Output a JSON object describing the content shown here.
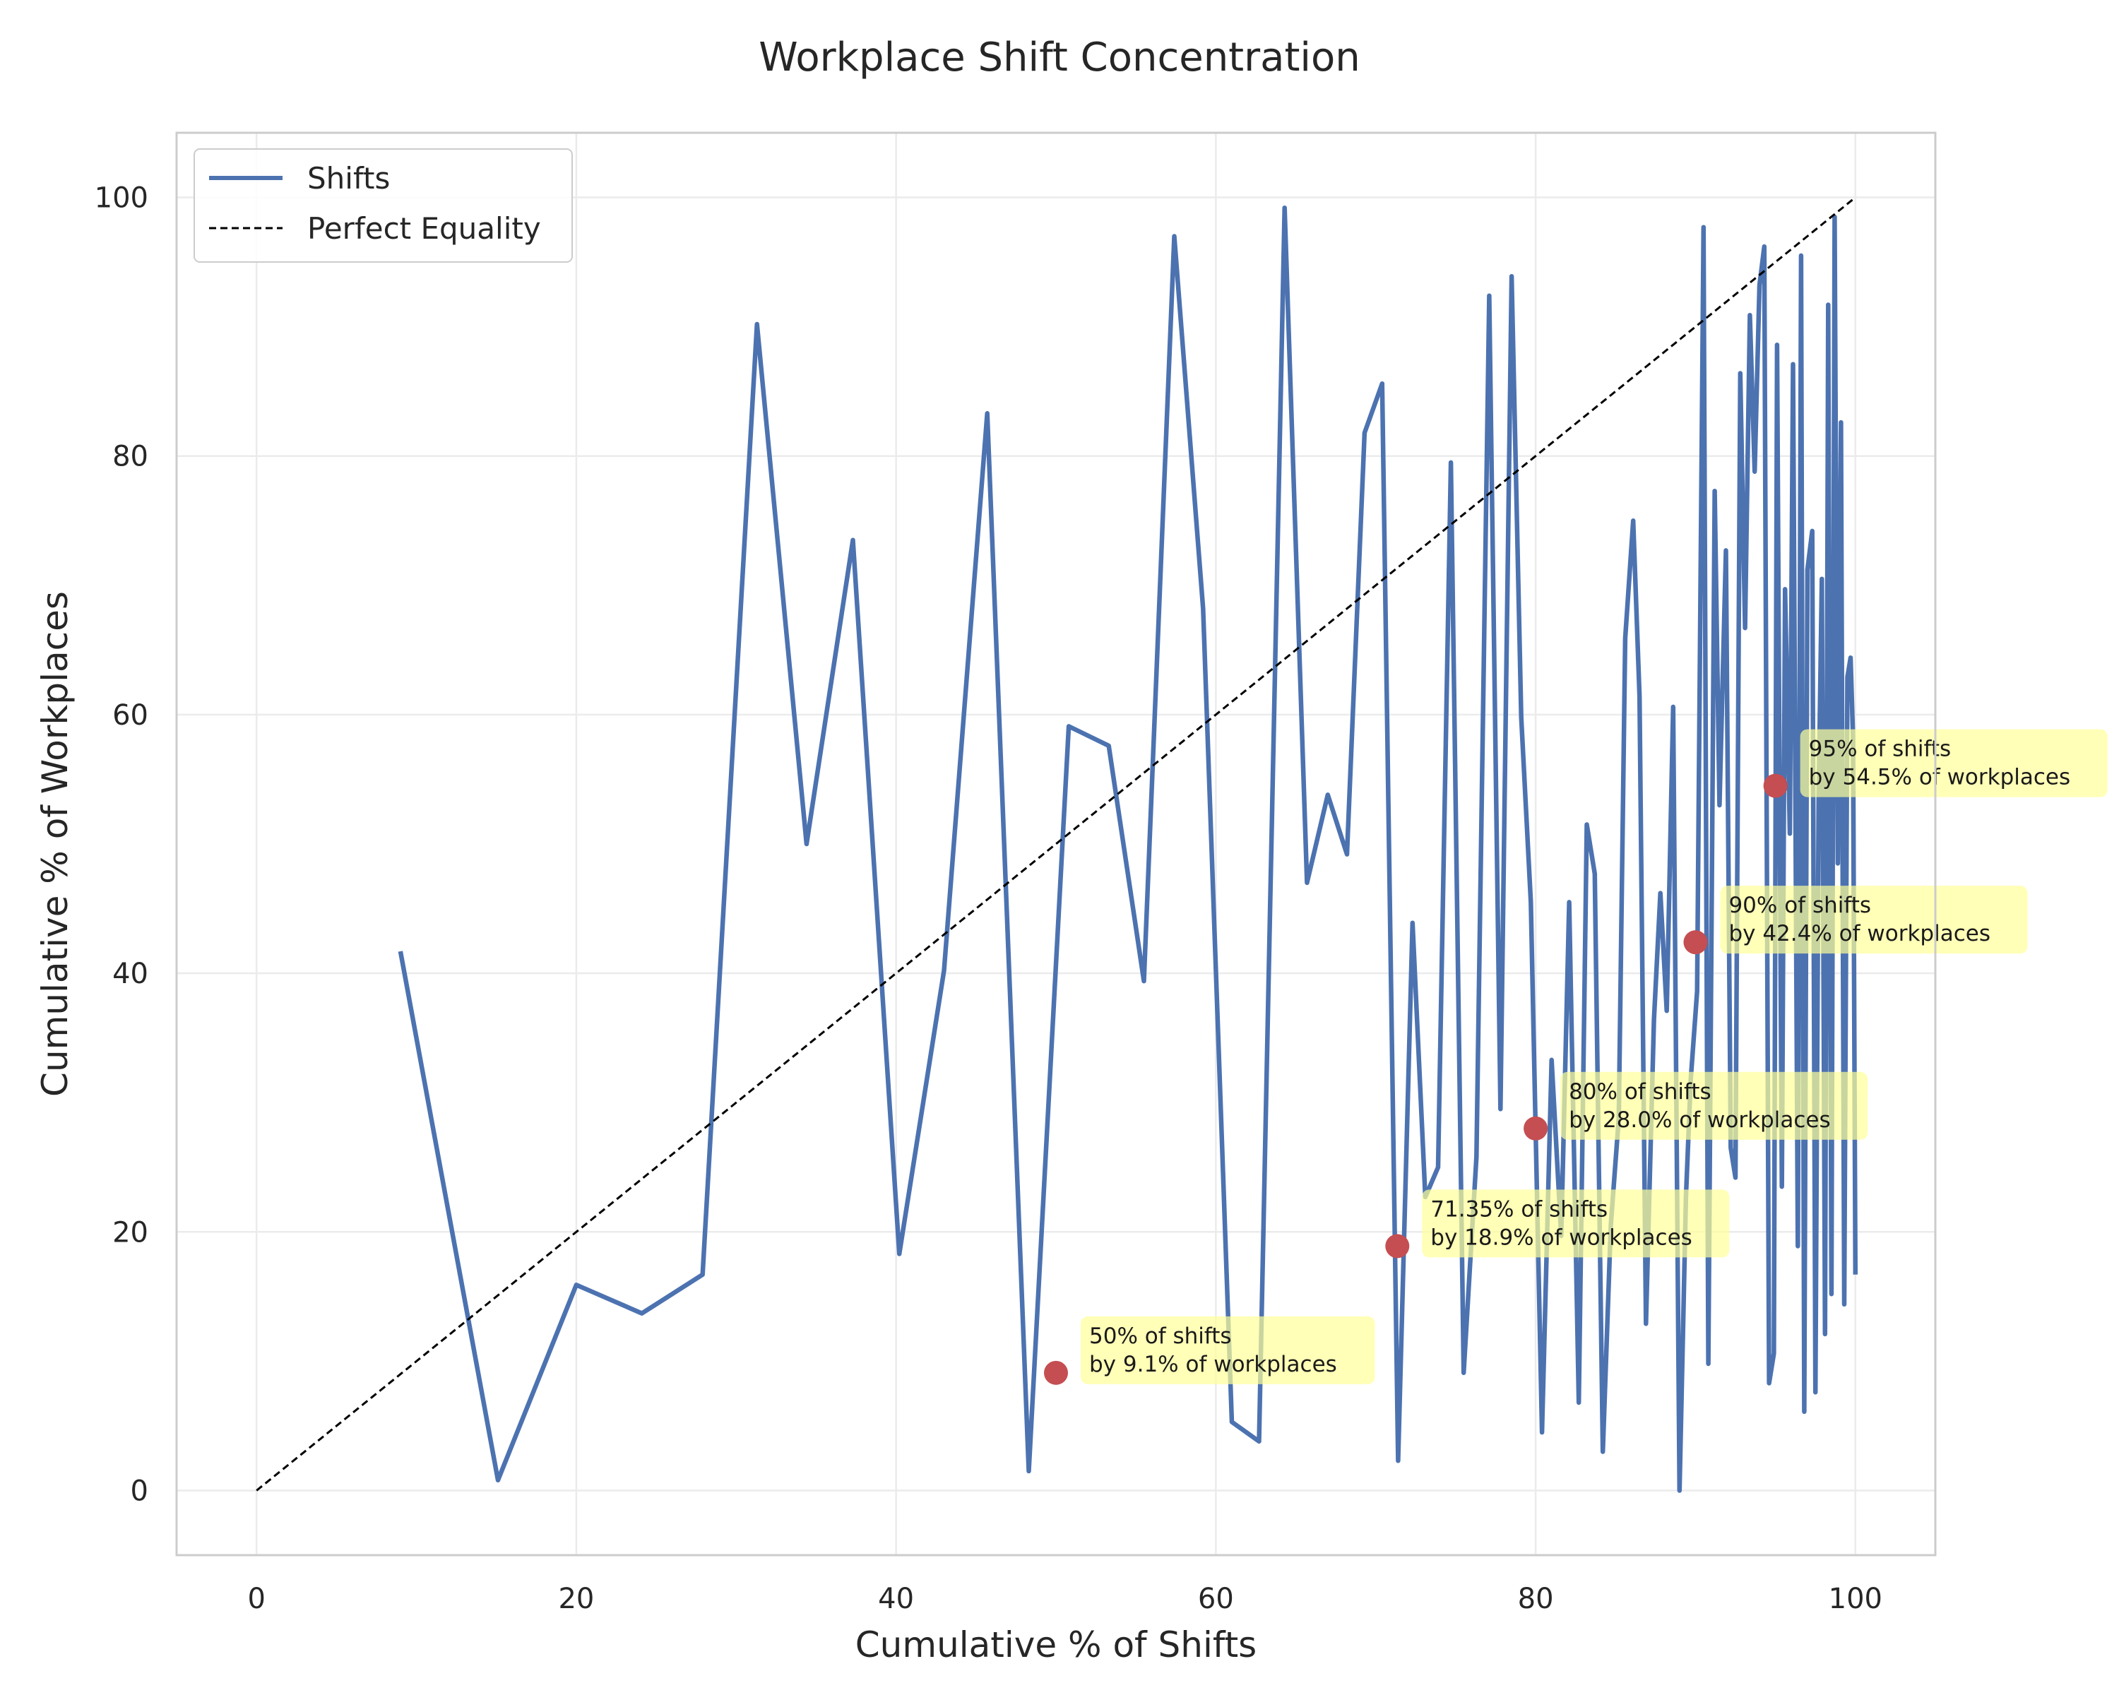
{
  "chart_data": {
    "type": "line",
    "title": "Workplace Shift Concentration",
    "xlabel": "Cumulative % of Shifts",
    "ylabel": "Cumulative % of Workplaces",
    "xlim": [
      -5,
      105
    ],
    "ylim": [
      -5,
      105
    ],
    "xticks": [
      "0",
      "20",
      "40",
      "60",
      "80",
      "100"
    ],
    "yticks": [
      "0",
      "20",
      "40",
      "60",
      "80",
      "100"
    ],
    "grid": true,
    "legend_placement": "top-left",
    "colors": {
      "shifts": "#4c72b0",
      "equality": "#000000",
      "markers": "#c44e52",
      "annot_box": "#ffff99",
      "grid": "#ebebeb",
      "frame": "#cccccc"
    },
    "series": [
      {
        "name": "Shifts",
        "style": "solid",
        "x": [
          9.0,
          15.1,
          20.0,
          24.1,
          27.9,
          31.3,
          34.4,
          37.3,
          40.2,
          43.0,
          45.7,
          48.3,
          50.8,
          53.3,
          55.5,
          57.4,
          59.2,
          61.0,
          62.7,
          64.3,
          65.7,
          67.0,
          68.2,
          69.3,
          70.4,
          71.4,
          72.3,
          73.1,
          73.9,
          74.7,
          75.5,
          76.3,
          77.1,
          77.8,
          78.5,
          79.1,
          79.7,
          80.4,
          81.0,
          81.6,
          82.1,
          82.7,
          83.2,
          83.7,
          84.2,
          84.7,
          85.2,
          85.6,
          86.1,
          86.5,
          86.9,
          87.4,
          87.8,
          88.2,
          88.6,
          89.0,
          89.4,
          89.7,
          90.1,
          90.5,
          90.8,
          91.2,
          91.5,
          91.9,
          92.2,
          92.5,
          92.8,
          93.1,
          93.4,
          93.7,
          94.0,
          94.3,
          94.6,
          94.9,
          95.1,
          95.4,
          95.6,
          95.9,
          96.1,
          96.4,
          96.6,
          96.8,
          97.0,
          97.3,
          97.5,
          97.7,
          97.9,
          98.1,
          98.3,
          98.5,
          98.7,
          98.9,
          99.1,
          99.3,
          99.5,
          99.7,
          99.85,
          100.0
        ],
        "y": [
          41.7,
          0.8,
          15.9,
          13.7,
          16.7,
          90.2,
          50.0,
          73.5,
          18.3,
          40.2,
          83.3,
          1.5,
          59.1,
          57.6,
          39.4,
          97.0,
          68.2,
          5.3,
          3.8,
          99.2,
          47.0,
          53.8,
          49.2,
          81.8,
          85.6,
          2.3,
          43.9,
          22.7,
          25.0,
          79.5,
          9.1,
          25.8,
          92.4,
          29.5,
          93.9,
          59.8,
          45.5,
          4.5,
          33.3,
          19.7,
          45.5,
          6.8,
          51.5,
          47.7,
          3.0,
          20.5,
          28.8,
          65.9,
          75.0,
          61.4,
          12.9,
          36.4,
          46.2,
          37.1,
          60.6,
          0.0,
          22.7,
          31.8,
          38.6,
          97.7,
          9.8,
          77.3,
          53.0,
          72.7,
          26.5,
          24.2,
          86.4,
          66.7,
          90.9,
          78.8,
          93.2,
          96.2,
          8.3,
          10.6,
          88.6,
          23.5,
          69.7,
          50.8,
          87.1,
          18.9,
          95.5,
          6.1,
          71.2,
          74.2,
          7.6,
          53.8,
          70.5,
          12.1,
          91.7,
          15.2,
          98.5,
          48.5,
          82.6,
          14.4,
          62.9,
          64.4,
          58.3,
          16.7
        ]
      },
      {
        "name": "Perfect Equality",
        "style": "dashed",
        "x": [
          0,
          100
        ],
        "y": [
          0,
          100
        ]
      }
    ],
    "annotations": [
      {
        "x": 50,
        "y": 9.1,
        "line1": "50% of shifts",
        "line2": "by 9.1% of workplaces"
      },
      {
        "x": 71.35,
        "y": 18.9,
        "line1": "71.35% of shifts",
        "line2": "by 18.9% of workplaces"
      },
      {
        "x": 80,
        "y": 28.0,
        "line1": "80% of shifts",
        "line2": "by 28.0% of workplaces"
      },
      {
        "x": 90,
        "y": 42.4,
        "line1": "90% of shifts",
        "line2": "by 42.4% of workplaces"
      },
      {
        "x": 95,
        "y": 54.5,
        "line1": "95% of shifts",
        "line2": "by 54.5% of workplaces"
      }
    ]
  }
}
